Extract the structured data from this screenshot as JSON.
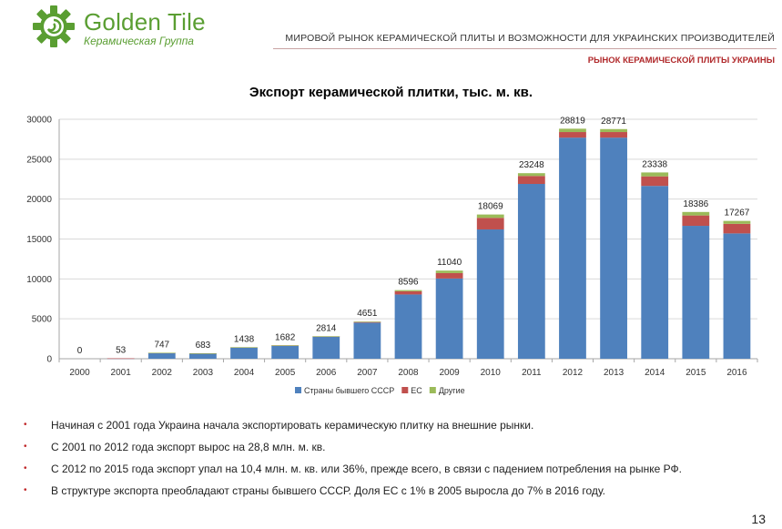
{
  "header": {
    "logo_name": "Golden Tile",
    "logo_sub": "Керамическая Группа",
    "title": "МИРОВОЙ РЫНОК КЕРАМИЧЕСКОЙ ПЛИТЫ И ВОЗМОЖНОСТИ ДЛЯ УКРАИНСКИХ ПРОИЗВОДИТЕЛЕЙ",
    "subtitle": "РЫНОК КЕРАМИЧЕСКОЙ ПЛИТЫ УКРАИНЫ"
  },
  "chart_data": {
    "type": "bar",
    "stacked": true,
    "title": "Экспорт керамической плитки, тыс. м. кв.",
    "categories": [
      "2000",
      "2001",
      "2002",
      "2003",
      "2004",
      "2005",
      "2006",
      "2007",
      "2008",
      "2009",
      "2010",
      "2011",
      "2012",
      "2013",
      "2014",
      "2015",
      "2016"
    ],
    "totals": [
      0,
      53,
      747,
      683,
      1438,
      1682,
      2814,
      4651,
      8596,
      11040,
      18069,
      23248,
      28819,
      28771,
      23338,
      18386,
      17267
    ],
    "series": [
      {
        "name": "Страны бывшего СССР",
        "color": "#4f81bd",
        "values": [
          0,
          52,
          740,
          675,
          1420,
          1650,
          2770,
          4520,
          8050,
          10050,
          16200,
          21900,
          27700,
          27700,
          21650,
          16650,
          15700
        ]
      },
      {
        "name": "ЕС",
        "color": "#c0504d",
        "values": [
          0,
          1,
          5,
          6,
          15,
          17,
          29,
          100,
          400,
          680,
          1450,
          1000,
          700,
          700,
          1200,
          1300,
          1200
        ]
      },
      {
        "name": "Другие",
        "color": "#9bbb59",
        "values": [
          0,
          0,
          2,
          2,
          3,
          15,
          15,
          31,
          146,
          310,
          419,
          348,
          419,
          371,
          488,
          436,
          367
        ]
      }
    ],
    "ylim": [
      0,
      30000
    ],
    "yticks": [
      0,
      5000,
      10000,
      15000,
      20000,
      25000,
      30000
    ],
    "grid": true,
    "legend": "bottom"
  },
  "bullets": [
    "Начиная с 2001 года Украина начала экспортировать керамическую плитку на внешние рынки.",
    "С 2001 по 2012 года экспорт вырос на 28,8 млн. м. кв.",
    "С 2012 по 2015 года экспорт упал на  10,4 млн. м. кв. или 36%, прежде всего, в связи с падением потребления на рынке РФ.",
    "В структуре экспорта преобладают страны бывшего СССР. Доля ЕС с 1% в 2005 выросла до 7% в 2016 году."
  ],
  "page_number": "13"
}
